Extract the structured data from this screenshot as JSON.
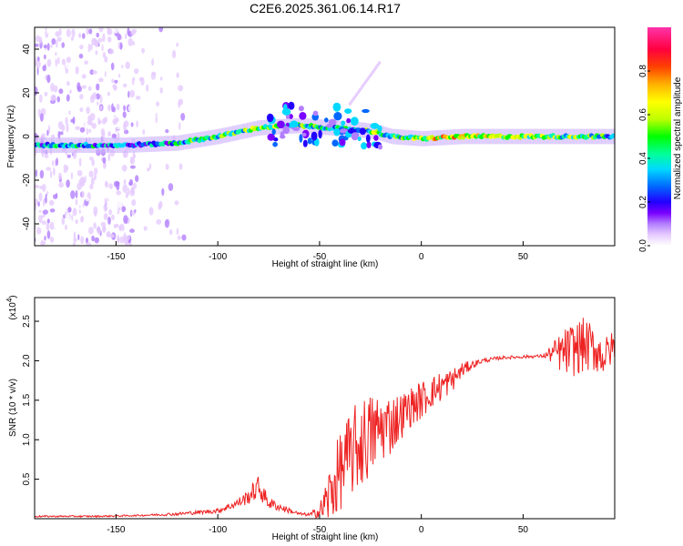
{
  "title": "C2E6.2025.361.06.14.R17",
  "chart_data": [
    {
      "type": "heatmap",
      "name": "spectrogram",
      "xlabel": "Height of straight line (km)",
      "ylabel": "Frequency (Hz)",
      "xlim": [
        -190,
        95
      ],
      "ylim": [
        -50,
        50
      ],
      "xticks": [
        -150,
        -100,
        -50,
        0,
        50
      ],
      "yticks": [
        -40,
        -20,
        0,
        20,
        40
      ],
      "colorbar": {
        "label": "Normalized spectral amplitude",
        "range": [
          0,
          1
        ],
        "ticks": [
          0.0,
          0.2,
          0.4,
          0.6,
          0.8
        ],
        "colors": [
          "#ffffff",
          "#e6ccff",
          "#b37fff",
          "#7a00ff",
          "#2200ff",
          "#0066ff",
          "#00d9ff",
          "#00ff99",
          "#00ff00",
          "#bfff00",
          "#ffff00",
          "#ffb000",
          "#ff4000",
          "#ff0040",
          "#ff33aa"
        ]
      },
      "ridge": {
        "description": "dominant frequency trace vs height",
        "x": [
          -190,
          -160,
          -145,
          -120,
          -100,
          -80,
          -60,
          -45,
          -30,
          -22,
          -15,
          0,
          20,
          50,
          80,
          95
        ],
        "freq_hz": [
          -4,
          -4,
          -4,
          -3,
          0,
          4,
          5,
          4,
          3,
          2,
          0,
          -1,
          0,
          0,
          0,
          0
        ],
        "amplitude": [
          0.4,
          0.45,
          0.35,
          0.45,
          0.55,
          0.6,
          0.55,
          0.5,
          0.45,
          0.6,
          0.45,
          0.7,
          0.75,
          0.6,
          0.55,
          0.5
        ]
      }
    },
    {
      "type": "line",
      "name": "snr",
      "xlabel": "Height of straight line (km)",
      "ylabel": "SNR (10 * v/v)",
      "yscale_label": "(x10",
      "yscale_exp": "4",
      "yscale_close": ")",
      "xlim": [
        -190,
        95
      ],
      "ylim": [
        0,
        2.8
      ],
      "xticks": [
        -150,
        -100,
        -50,
        0,
        50
      ],
      "yticks": [
        0.5,
        1.0,
        1.5,
        2.0,
        2.5
      ],
      "line_color": "#ee2222",
      "series": [
        {
          "name": "SNR",
          "x": [
            -190,
            -160,
            -140,
            -120,
            -100,
            -90,
            -85,
            -80,
            -75,
            -70,
            -60,
            -55,
            -50,
            -45,
            -40,
            -35,
            -30,
            -25,
            -20,
            -15,
            -10,
            -5,
            0,
            5,
            10,
            15,
            20,
            25,
            30,
            40,
            50,
            60,
            65,
            70,
            75,
            80,
            85,
            90,
            95
          ],
          "y": [
            0.03,
            0.03,
            0.04,
            0.06,
            0.1,
            0.2,
            0.28,
            0.4,
            0.2,
            0.15,
            0.06,
            0.05,
            0.08,
            0.3,
            0.6,
            0.8,
            0.95,
            1.05,
            1.15,
            1.2,
            1.3,
            1.42,
            1.5,
            1.6,
            1.68,
            1.75,
            1.88,
            1.95,
            2.0,
            2.04,
            2.05,
            2.06,
            2.1,
            2.1,
            2.15,
            2.2,
            2.15,
            2.05,
            2.2
          ],
          "noise": [
            0.01,
            0.01,
            0.01,
            0.02,
            0.03,
            0.06,
            0.1,
            0.15,
            0.08,
            0.05,
            0.02,
            0.02,
            0.1,
            0.4,
            0.5,
            0.55,
            0.6,
            0.55,
            0.45,
            0.4,
            0.3,
            0.25,
            0.25,
            0.2,
            0.2,
            0.15,
            0.1,
            0.05,
            0.03,
            0.02,
            0.02,
            0.02,
            0.15,
            0.3,
            0.35,
            0.35,
            0.3,
            0.25,
            0.2
          ]
        }
      ]
    }
  ]
}
